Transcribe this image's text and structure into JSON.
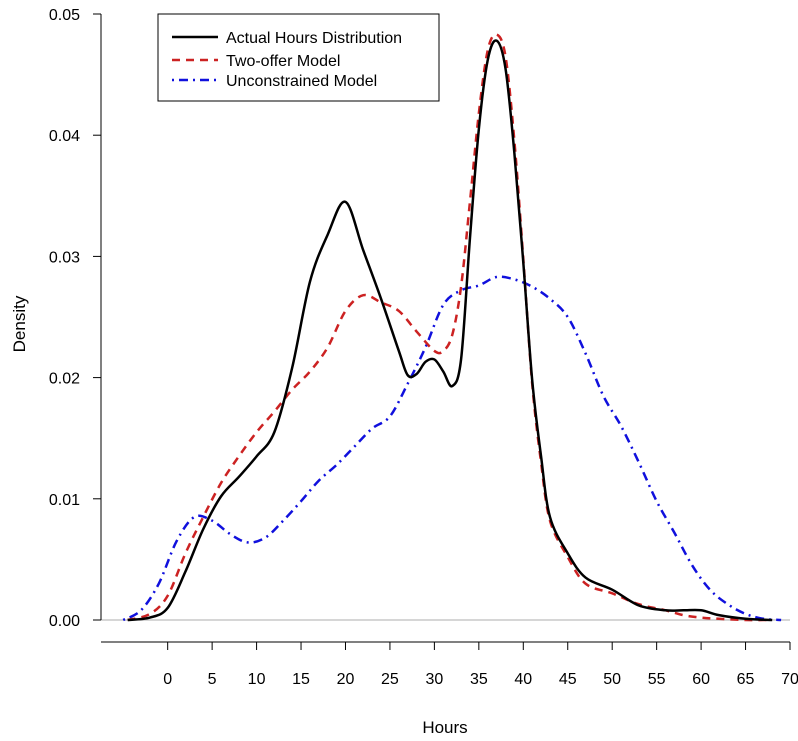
{
  "chart_data": {
    "type": "line",
    "title": "",
    "xlabel": "Hours",
    "ylabel": "Density",
    "xlim": [
      -7.5,
      70
    ],
    "ylim": [
      0,
      0.05
    ],
    "x_ticks": [
      0,
      5,
      10,
      15,
      20,
      25,
      30,
      35,
      40,
      45,
      50,
      55,
      60,
      65,
      70
    ],
    "x_tick_labels": [
      "0",
      "5",
      "10",
      "15",
      "20",
      "25",
      "30",
      "35",
      "40",
      "45",
      "50",
      "55",
      "60",
      "65",
      "70"
    ],
    "y_ticks": [
      0,
      0.01,
      0.02,
      0.03,
      0.04,
      0.05
    ],
    "y_tick_labels": [
      "0.00",
      "0.01",
      "0.02",
      "0.03",
      "0.04",
      "0.05"
    ],
    "reference_line": {
      "y": 0,
      "color": "#bebebe"
    },
    "grid": false,
    "legend_position": "top-left",
    "series": [
      {
        "name": "Actual Hours Distribution",
        "color": "#000000",
        "style": "solid",
        "x": [
          -4.5,
          -2,
          0,
          2,
          4,
          6,
          8,
          10,
          12,
          14,
          16,
          18,
          20,
          22,
          24,
          26,
          27,
          28,
          29,
          30,
          31,
          32,
          33,
          34,
          35,
          36,
          37,
          38,
          39,
          40,
          41,
          42,
          43,
          45,
          47,
          50,
          53,
          56,
          58,
          60,
          62,
          65,
          68
        ],
        "y": [
          0.0,
          0.0002,
          0.001,
          0.004,
          0.0075,
          0.0102,
          0.0118,
          0.0135,
          0.0155,
          0.0208,
          0.0279,
          0.0318,
          0.0345,
          0.0305,
          0.0265,
          0.0222,
          0.0202,
          0.0203,
          0.0213,
          0.0215,
          0.0205,
          0.0193,
          0.0215,
          0.0315,
          0.0405,
          0.0462,
          0.0478,
          0.0455,
          0.0385,
          0.0295,
          0.0198,
          0.0135,
          0.0085,
          0.0055,
          0.0035,
          0.0025,
          0.0012,
          0.0008,
          0.0008,
          0.0008,
          0.0004,
          0.0001,
          0.0
        ]
      },
      {
        "name": "Two-offer Model",
        "color": "#cc2222",
        "style": "dashed",
        "x": [
          -4.5,
          -2,
          0,
          2,
          4,
          6,
          8,
          10,
          12,
          14,
          16,
          18,
          20,
          22,
          24,
          26,
          28,
          30,
          31,
          32,
          33,
          34,
          35,
          36,
          37,
          38,
          39,
          40,
          41,
          42,
          43,
          45,
          47,
          50,
          53,
          56,
          58,
          60,
          62,
          65,
          68
        ],
        "y": [
          0.0,
          0.0005,
          0.002,
          0.0055,
          0.0085,
          0.0113,
          0.0135,
          0.0155,
          0.0172,
          0.019,
          0.0205,
          0.0225,
          0.0255,
          0.0268,
          0.0262,
          0.0255,
          0.0238,
          0.0222,
          0.0222,
          0.0235,
          0.0275,
          0.0345,
          0.0418,
          0.047,
          0.0483,
          0.0465,
          0.0395,
          0.0298,
          0.0195,
          0.013,
          0.0082,
          0.0052,
          0.003,
          0.0022,
          0.0013,
          0.0008,
          0.0004,
          0.0002,
          0.0001,
          0.0,
          0.0
        ]
      },
      {
        "name": "Unconstrained Model",
        "color": "#1010dd",
        "style": "dotdash",
        "x": [
          -5,
          -3,
          -1,
          1,
          3,
          5,
          7,
          9,
          11,
          13,
          15,
          17,
          19,
          21,
          23,
          25,
          27,
          29,
          31,
          33,
          35,
          37,
          39,
          41,
          43,
          45,
          47,
          49,
          51,
          53,
          55,
          57,
          59,
          61,
          63,
          65,
          67,
          69
        ],
        "y": [
          0.0,
          0.0008,
          0.003,
          0.0065,
          0.0085,
          0.0082,
          0.0071,
          0.0064,
          0.0068,
          0.0082,
          0.0098,
          0.0115,
          0.0128,
          0.0143,
          0.0158,
          0.0168,
          0.0195,
          0.0225,
          0.026,
          0.0272,
          0.0276,
          0.0283,
          0.0281,
          0.0275,
          0.0265,
          0.025,
          0.022,
          0.0185,
          0.016,
          0.013,
          0.0098,
          0.0072,
          0.0045,
          0.0025,
          0.0013,
          0.0005,
          0.0001,
          0.0
        ]
      }
    ]
  }
}
